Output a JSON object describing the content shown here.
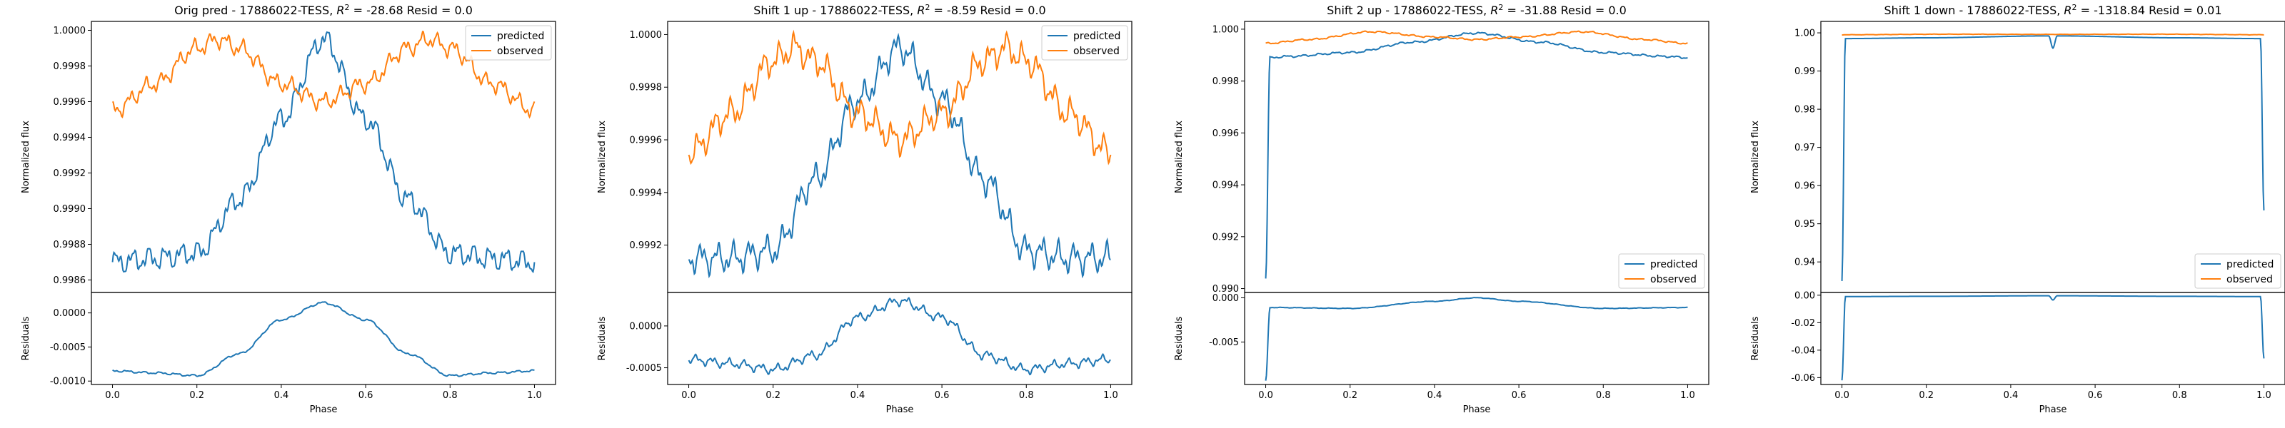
{
  "figure": {
    "background": "#ffffff"
  },
  "colors": {
    "predicted": "#1f77b4",
    "observed": "#ff7f0e",
    "axis": "#000000",
    "legend_border": "#cccccc"
  },
  "chart_data": [
    {
      "type": "line",
      "title": "Orig pred - 17886022-TESS, R² = -28.68 Resid = 0.0",
      "title_parts": {
        "pre": "Orig pred - 17886022-TESS, ",
        "r2_symbol": "R",
        "r2_exp": "2",
        "post": " = -28.68 Resid = 0.0"
      },
      "xlabel": "Phase",
      "ylabel_top": "Normalized flux",
      "ylabel_bottom": "Residuals",
      "legend": {
        "placement": "upper-right",
        "entries": [
          "predicted",
          "observed"
        ]
      },
      "xlim": [
        -0.05,
        1.05
      ],
      "xticks": [
        "0.0",
        "0.2",
        "0.4",
        "0.6",
        "0.8",
        "1.0"
      ],
      "top": {
        "ylim": [
          0.99853,
          1.00005
        ],
        "yticks": [
          "0.9986",
          "0.9988",
          "0.9990",
          "0.9992",
          "0.9994",
          "0.9996",
          "0.9998",
          "1.0000"
        ],
        "series": [
          {
            "name": "predicted",
            "x": [
              0.0,
              0.1,
              0.2,
              0.3,
              0.4,
              0.5,
              0.6,
              0.7,
              0.8,
              0.9,
              1.0
            ],
            "y": [
              0.9987,
              0.99872,
              0.99875,
              0.99905,
              0.9995,
              0.99995,
              0.9995,
              0.99905,
              0.99875,
              0.99872,
              0.9987
            ],
            "wiggle": 8e-05
          },
          {
            "name": "observed",
            "x": [
              0.0,
              0.1,
              0.2,
              0.25,
              0.3,
              0.4,
              0.5,
              0.6,
              0.7,
              0.75,
              0.8,
              0.9,
              1.0
            ],
            "y": [
              0.99955,
              0.9997,
              0.9999,
              0.99995,
              0.9999,
              0.9997,
              0.9996,
              0.9997,
              0.9999,
              0.99995,
              0.9999,
              0.9997,
              0.99955
            ],
            "wiggle": 6e-05
          }
        ]
      },
      "bottom": {
        "ylim": [
          -0.00105,
          0.0003
        ],
        "yticks": [
          "0.0000",
          "-0.0005",
          "-0.0010"
        ],
        "ytick_values": [
          0.0,
          -0.0005,
          -0.001
        ],
        "series": [
          {
            "name": "residual",
            "x": [
              0.0,
              0.1,
              0.2,
              0.3,
              0.4,
              0.5,
              0.6,
              0.7,
              0.8,
              0.9,
              1.0
            ],
            "y": [
              -0.00085,
              -0.00088,
              -0.00092,
              -0.0006,
              -0.0001,
              0.00015,
              -0.0001,
              -0.0006,
              -0.00092,
              -0.00088,
              -0.00085
            ],
            "wiggle": 2e-05
          }
        ]
      }
    },
    {
      "type": "line",
      "title": "Shift 1 up - 17886022-TESS, R² = -8.59 Resid = 0.0",
      "title_parts": {
        "pre": "Shift 1 up - 17886022-TESS, ",
        "r2_symbol": "R",
        "r2_exp": "2",
        "post": " = -8.59 Resid = 0.0"
      },
      "xlabel": "Phase",
      "ylabel_top": "Normalized flux",
      "ylabel_bottom": "Residuals",
      "legend": {
        "placement": "upper-right",
        "entries": [
          "predicted",
          "observed"
        ]
      },
      "xlim": [
        -0.05,
        1.05
      ],
      "xticks": [
        "0.0",
        "0.2",
        "0.4",
        "0.6",
        "0.8",
        "1.0"
      ],
      "top": {
        "ylim": [
          0.99902,
          1.00005
        ],
        "yticks": [
          "0.9992",
          "0.9994",
          "0.9996",
          "0.9998",
          "1.0000"
        ],
        "series": [
          {
            "name": "predicted",
            "x": [
              0.0,
              0.1,
              0.2,
              0.3,
              0.4,
              0.5,
              0.6,
              0.7,
              0.8,
              0.9,
              1.0
            ],
            "y": [
              0.99915,
              0.99915,
              0.99918,
              0.99945,
              0.99975,
              0.99995,
              0.99975,
              0.99945,
              0.99918,
              0.99915,
              0.99915
            ],
            "wiggle": 7e-05
          },
          {
            "name": "observed",
            "x": [
              0.0,
              0.1,
              0.2,
              0.25,
              0.3,
              0.4,
              0.5,
              0.6,
              0.7,
              0.75,
              0.8,
              0.9,
              1.0
            ],
            "y": [
              0.99955,
              0.9997,
              0.9999,
              0.99995,
              0.9999,
              0.9997,
              0.9996,
              0.9997,
              0.9999,
              0.99995,
              0.9999,
              0.9997,
              0.99955
            ],
            "wiggle": 7e-05
          }
        ]
      },
      "bottom": {
        "ylim": [
          -0.0007,
          0.0004
        ],
        "yticks": [
          "0.0000",
          "-0.0005"
        ],
        "ytick_values": [
          0.0,
          -0.0005
        ],
        "series": [
          {
            "name": "residual",
            "x": [
              0.0,
              0.1,
              0.2,
              0.3,
              0.4,
              0.5,
              0.6,
              0.7,
              0.8,
              0.9,
              1.0
            ],
            "y": [
              -0.0004,
              -0.00045,
              -0.00052,
              -0.00035,
              0.0001,
              0.0003,
              0.0001,
              -0.00035,
              -0.00052,
              -0.00045,
              -0.0004
            ],
            "wiggle": 7e-05
          }
        ]
      }
    },
    {
      "type": "line",
      "title": "Shift 2 up - 17886022-TESS, R² = -31.88 Resid = 0.0",
      "title_parts": {
        "pre": "Shift 2 up - 17886022-TESS, ",
        "r2_symbol": "R",
        "r2_exp": "2",
        "post": " = -31.88 Resid = 0.0"
      },
      "xlabel": "Phase",
      "ylabel_top": "Normalized flux",
      "ylabel_bottom": "Residuals",
      "legend": {
        "placement": "lower-right",
        "entries": [
          "predicted",
          "observed"
        ]
      },
      "xlim": [
        -0.05,
        1.05
      ],
      "xticks": [
        "0.0",
        "0.2",
        "0.4",
        "0.6",
        "0.8",
        "1.0"
      ],
      "top": {
        "ylim": [
          0.98985,
          1.0003
        ],
        "yticks": [
          "0.990",
          "0.992",
          "0.994",
          "0.996",
          "0.998",
          "1.000"
        ],
        "series": [
          {
            "name": "predicted",
            "x": [
              0.0,
              0.01,
              0.05,
              0.2,
              0.35,
              0.5,
              0.65,
              0.8,
              0.95,
              1.0
            ],
            "y": [
              0.9904,
              0.9989,
              0.99895,
              0.9991,
              0.9995,
              0.99985,
              0.9995,
              0.9991,
              0.99895,
              0.9989
            ],
            "wiggle": 5e-05
          },
          {
            "name": "observed",
            "x": [
              0.0,
              0.1,
              0.25,
              0.4,
              0.5,
              0.6,
              0.75,
              0.9,
              1.0
            ],
            "y": [
              0.99945,
              0.9996,
              0.9999,
              0.9997,
              0.9996,
              0.9997,
              0.9999,
              0.9996,
              0.99945
            ],
            "wiggle": 4e-05
          }
        ]
      },
      "bottom": {
        "ylim": [
          -0.0098,
          0.0006
        ],
        "yticks": [
          "0.000",
          "-0.005"
        ],
        "ytick_values": [
          0.0,
          -0.005
        ],
        "series": [
          {
            "name": "residual",
            "x": [
              0.0,
              0.01,
              0.2,
              0.4,
              0.5,
              0.6,
              0.8,
              1.0
            ],
            "y": [
              -0.0094,
              -0.0011,
              -0.0012,
              -0.0004,
              0.0,
              -0.0004,
              -0.0012,
              -0.0011
            ],
            "wiggle": 4e-05
          }
        ]
      }
    },
    {
      "type": "line",
      "title": "Shift 1 down - 17886022-TESS, R² = -1318.84 Resid = 0.01",
      "title_parts": {
        "pre": "Shift 1 down - 17886022-TESS, ",
        "r2_symbol": "R",
        "r2_exp": "2",
        "post": " = -1318.84 Resid = 0.01"
      },
      "xlabel": "Phase",
      "ylabel_top": "Normalized flux",
      "ylabel_bottom": "Residuals",
      "legend": {
        "placement": "lower-right",
        "entries": [
          "predicted",
          "observed"
        ]
      },
      "xlim": [
        -0.05,
        1.05
      ],
      "xticks": [
        "0.0",
        "0.2",
        "0.4",
        "0.6",
        "0.8",
        "1.0"
      ],
      "top": {
        "ylim": [
          0.932,
          1.003
        ],
        "yticks": [
          "0.94",
          "0.95",
          "0.96",
          "0.97",
          "0.98",
          "0.99",
          "1.00"
        ],
        "series": [
          {
            "name": "predicted",
            "x": [
              0.0,
              0.008,
              0.2,
              0.49,
              0.5,
              0.51,
              0.8,
              0.992,
              1.0
            ],
            "y": [
              0.935,
              0.9985,
              0.9987,
              0.9992,
              0.996,
              0.9992,
              0.9987,
              0.9985,
              0.9535
            ],
            "wiggle": 0.0
          },
          {
            "name": "observed",
            "x": [
              0.0,
              0.25,
              0.5,
              0.75,
              1.0
            ],
            "y": [
              0.9995,
              0.99965,
              0.9996,
              0.99965,
              0.9995
            ],
            "wiggle": 5e-05
          }
        ]
      },
      "bottom": {
        "ylim": [
          -0.065,
          0.002
        ],
        "yticks": [
          "0.00",
          "-0.02",
          "-0.04",
          "-0.06"
        ],
        "ytick_values": [
          0.0,
          -0.02,
          -0.04,
          -0.06
        ],
        "series": [
          {
            "name": "residual",
            "x": [
              0.0,
              0.008,
              0.2,
              0.49,
              0.5,
              0.51,
              0.8,
              0.992,
              1.0
            ],
            "y": [
              -0.062,
              -0.001,
              -0.0008,
              -0.0004,
              -0.0035,
              -0.0004,
              -0.0008,
              -0.001,
              -0.046
            ],
            "wiggle": 0.0
          }
        ]
      }
    }
  ]
}
